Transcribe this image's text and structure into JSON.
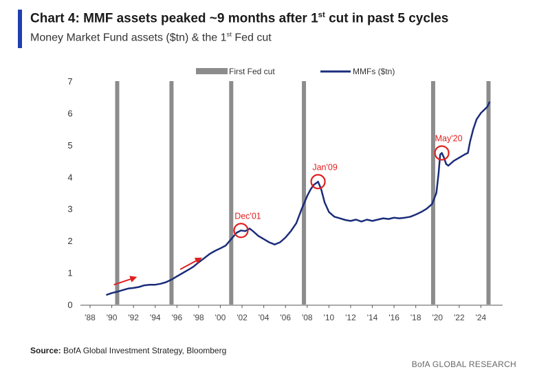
{
  "header": {
    "title_main": "Chart 4: MMF assets peaked ~9 months after 1",
    "title_sup": "st",
    "title_end": " cut in past 5 cycles",
    "subtitle_main": "Money Market Fund assets ($tn) & the 1",
    "subtitle_sup": "st",
    "subtitle_end": " Fed cut"
  },
  "footer": {
    "source_label": "Source:",
    "source_text": " BofA Global Investment Strategy, Bloomberg",
    "brand": "BofA GLOBAL RESEARCH"
  },
  "chart_data": {
    "type": "line",
    "xlim": [
      1988,
      2026
    ],
    "ylim": [
      0,
      7
    ],
    "x_ticks": [
      {
        "value": 1988,
        "label": "'88"
      },
      {
        "value": 1990,
        "label": "'90"
      },
      {
        "value": 1992,
        "label": "'92"
      },
      {
        "value": 1994,
        "label": "'94"
      },
      {
        "value": 1996,
        "label": "'96"
      },
      {
        "value": 1998,
        "label": "'98"
      },
      {
        "value": 2000,
        "label": "'00"
      },
      {
        "value": 2002,
        "label": "'02"
      },
      {
        "value": 2004,
        "label": "'04"
      },
      {
        "value": 2006,
        "label": "'06"
      },
      {
        "value": 2008,
        "label": "'08"
      },
      {
        "value": 2010,
        "label": "'10"
      },
      {
        "value": 2012,
        "label": "'12"
      },
      {
        "value": 2014,
        "label": "'14"
      },
      {
        "value": 2016,
        "label": "'16"
      },
      {
        "value": 2018,
        "label": "'18"
      },
      {
        "value": 2020,
        "label": "'20"
      },
      {
        "value": 2022,
        "label": "'22"
      },
      {
        "value": 2024,
        "label": "'24"
      }
    ],
    "y_ticks": [
      0,
      1,
      2,
      3,
      4,
      5,
      6,
      7
    ],
    "legend": {
      "position": "top",
      "fed_label": "First Fed cut",
      "mmf_label": "MMFs ($tn)"
    },
    "colors": {
      "series": "#1a2c7a",
      "fed_bar": "#8c8c8c",
      "annotation": "#e02020",
      "axis": "#555555"
    },
    "fed_cuts": [
      1990.5,
      1995.5,
      2001.0,
      2007.7,
      2019.6,
      2024.7
    ],
    "series": [
      {
        "name": "MMFs ($tn)",
        "x": [
          1989.5,
          1990.0,
          1990.5,
          1991.0,
          1991.5,
          1992.0,
          1992.5,
          1993.0,
          1993.5,
          1994.0,
          1994.5,
          1995.0,
          1995.5,
          1996.0,
          1996.5,
          1997.0,
          1997.5,
          1998.0,
          1998.5,
          1999.0,
          1999.5,
          2000.0,
          2000.5,
          2001.0,
          2001.5,
          2001.9,
          2002.3,
          2002.7,
          2003.0,
          2003.5,
          2004.0,
          2004.5,
          2005.0,
          2005.5,
          2006.0,
          2006.5,
          2007.0,
          2007.5,
          2008.0,
          2008.3,
          2008.6,
          2008.9,
          2009.0,
          2009.3,
          2009.6,
          2010.0,
          2010.5,
          2011.0,
          2011.5,
          2012.0,
          2012.5,
          2013.0,
          2013.5,
          2014.0,
          2014.5,
          2015.0,
          2015.5,
          2016.0,
          2016.5,
          2017.0,
          2017.5,
          2018.0,
          2018.5,
          2019.0,
          2019.5,
          2019.9,
          2020.1,
          2020.25,
          2020.4,
          2020.6,
          2020.8,
          2021.0,
          2021.5,
          2022.0,
          2022.5,
          2022.8,
          2023.0,
          2023.3,
          2023.6,
          2024.0,
          2024.3,
          2024.6,
          2024.8
        ],
        "values": [
          0.3,
          0.36,
          0.4,
          0.45,
          0.5,
          0.52,
          0.55,
          0.6,
          0.62,
          0.62,
          0.65,
          0.7,
          0.78,
          0.88,
          0.98,
          1.08,
          1.18,
          1.32,
          1.45,
          1.58,
          1.68,
          1.76,
          1.85,
          2.05,
          2.25,
          2.32,
          2.3,
          2.38,
          2.3,
          2.15,
          2.05,
          1.95,
          1.88,
          1.95,
          2.1,
          2.3,
          2.55,
          3.0,
          3.4,
          3.6,
          3.75,
          3.82,
          3.85,
          3.6,
          3.2,
          2.9,
          2.75,
          2.7,
          2.65,
          2.62,
          2.66,
          2.6,
          2.66,
          2.62,
          2.66,
          2.7,
          2.68,
          2.72,
          2.7,
          2.72,
          2.75,
          2.82,
          2.9,
          3.0,
          3.15,
          3.5,
          4.1,
          4.7,
          4.75,
          4.6,
          4.4,
          4.35,
          4.5,
          4.6,
          4.7,
          4.75,
          5.1,
          5.5,
          5.8,
          6.0,
          6.1,
          6.2,
          6.35
        ]
      }
    ],
    "annotations": [
      {
        "label": "Dec'01",
        "x": 2001.9,
        "y": 2.32
      },
      {
        "label": "Jan'09",
        "x": 2009.0,
        "y": 3.85
      },
      {
        "label": "May'20",
        "x": 2020.4,
        "y": 4.75
      }
    ],
    "arrows": [
      {
        "x1": 1990.2,
        "y1": 0.62,
        "x2": 1992.2,
        "y2": 0.85
      },
      {
        "x1": 1996.3,
        "y1": 1.1,
        "x2": 1998.2,
        "y2": 1.45
      }
    ]
  }
}
